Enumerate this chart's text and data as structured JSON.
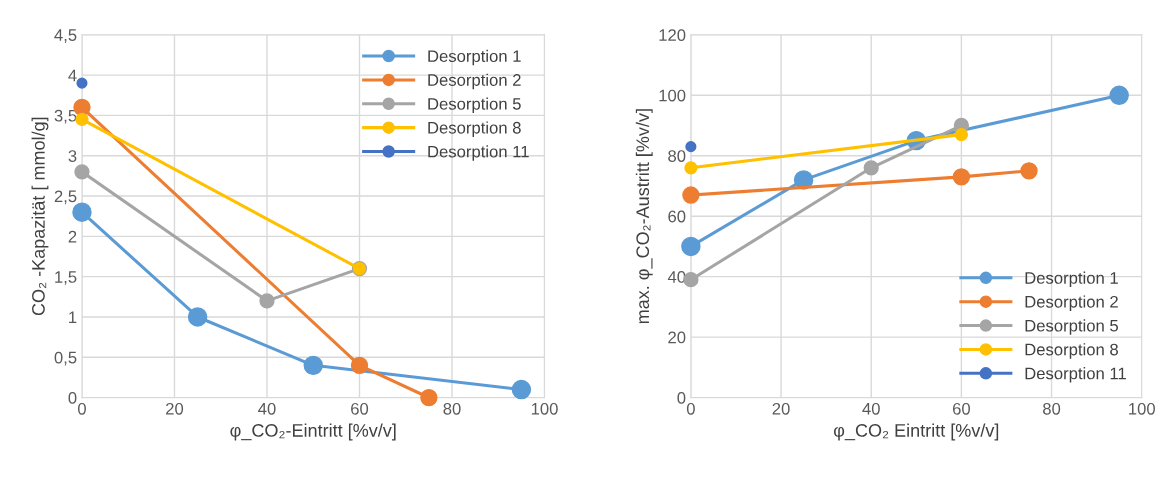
{
  "chart_data": [
    {
      "type": "line",
      "xlabel": "φ_CO₂-Eintritt [%v/v]",
      "ylabel": "CO₂ -Kapazität [ mmol/g]",
      "xlim": [
        0,
        100
      ],
      "xticks": [
        0,
        20,
        40,
        60,
        80,
        100
      ],
      "ylim": [
        0,
        4.5
      ],
      "yticks": [
        0,
        {
          "value": 0.5,
          "label": "0,5"
        },
        1,
        {
          "value": 1.5,
          "label": "1,5"
        },
        2,
        {
          "value": 2.5,
          "label": "2,5"
        },
        3,
        {
          "value": 3.5,
          "label": "3,5"
        },
        4,
        {
          "value": 4.5,
          "label": "4,5"
        }
      ],
      "grid": true,
      "legend": "top right",
      "marker": "circle",
      "line_style": "solid",
      "series": [
        {
          "name": "Desorption 1",
          "color": "#5b9bd5",
          "x": [
            0,
            25,
            50,
            95
          ],
          "values": [
            2.3,
            1.0,
            0.4,
            0.1
          ]
        },
        {
          "name": "Desorption 2",
          "color": "#ed7d31",
          "x": [
            0,
            60,
            75
          ],
          "values": [
            3.6,
            0.4,
            0
          ]
        },
        {
          "name": "Desorption 5",
          "color": "#a5a5a5",
          "x": [
            0,
            40,
            60
          ],
          "values": [
            2.8,
            1.2,
            1.6
          ]
        },
        {
          "name": "Desorption 8",
          "color": "#ffc000",
          "x": [
            0,
            60
          ],
          "values": [
            3.45,
            1.6
          ]
        },
        {
          "name": "Desorption 11",
          "color": "#4472c4",
          "x": [
            0
          ],
          "values": [
            3.9
          ]
        }
      ]
    },
    {
      "type": "line",
      "xlabel": "φ_CO₂ Eintritt [%v/v]",
      "ylabel": "max. φ_CO₂-Austritt [%v/v]",
      "xlim": [
        0,
        100
      ],
      "xticks": [
        0,
        20,
        40,
        60,
        80,
        100
      ],
      "ylim": [
        0,
        120
      ],
      "yticks": [
        0,
        20,
        40,
        60,
        80,
        100,
        120
      ],
      "grid": true,
      "legend": "bottom right",
      "marker": "circle",
      "line_style": "solid",
      "series": [
        {
          "name": "Desorption 1",
          "color": "#5b9bd5",
          "x": [
            0,
            25,
            50,
            95
          ],
          "values": [
            50,
            72,
            85,
            100
          ]
        },
        {
          "name": "Desorption 2",
          "color": "#ed7d31",
          "x": [
            0,
            60,
            75
          ],
          "values": [
            67,
            73,
            75
          ]
        },
        {
          "name": "Desorption 5",
          "color": "#a5a5a5",
          "x": [
            0,
            40,
            60
          ],
          "values": [
            39,
            76,
            90
          ]
        },
        {
          "name": "Desorption 8",
          "color": "#ffc000",
          "x": [
            0,
            60
          ],
          "values": [
            76,
            87
          ]
        },
        {
          "name": "Desorption 11",
          "color": "#4472c4",
          "x": [
            0
          ],
          "values": [
            83
          ]
        }
      ]
    }
  ]
}
